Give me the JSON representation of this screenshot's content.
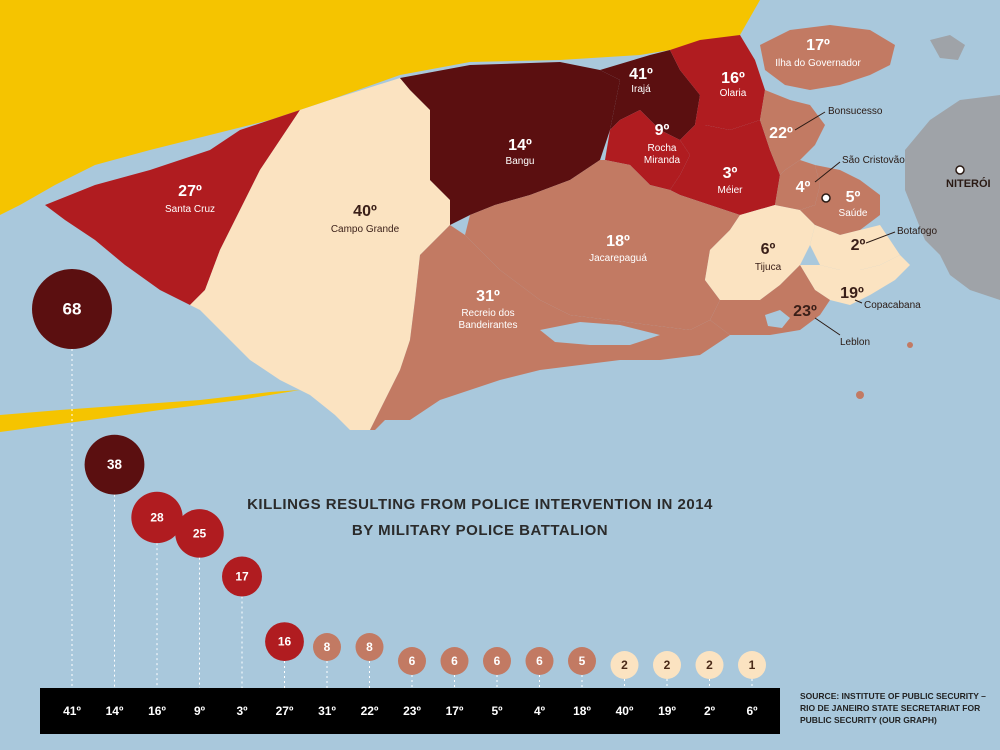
{
  "title": {
    "line1": "KILLINGS RESULTING FROM POLICE INTERVENTION IN 2014",
    "line2": "BY MILITARY POLICE BATTALION"
  },
  "source": "SOURCE: INSTITUTE OF PUBLIC SECURITY – RIO DE JANEIRO STATE SECRETARIAT FOR PUBLIC SECURITY (OUR GRAPH)",
  "colors": {
    "sea": "#a9c8dc",
    "land_outside": "#f5c400",
    "very_high": "#5b0f10",
    "high": "#b01c20",
    "medium": "#c27a63",
    "low": "#fbe3c1"
  },
  "regions": [
    {
      "id": "27",
      "num": "27º",
      "name": "Santa Cruz",
      "level": "high"
    },
    {
      "id": "40",
      "num": "40º",
      "name": "Campo Grande",
      "level": "low"
    },
    {
      "id": "14",
      "num": "14º",
      "name": "Bangu",
      "level": "very_high"
    },
    {
      "id": "41",
      "num": "41º",
      "name": "Irajá",
      "level": "very_high"
    },
    {
      "id": "16",
      "num": "16º",
      "name": "Olaria",
      "level": "high"
    },
    {
      "id": "9",
      "num": "9º",
      "name": "Rocha Miranda",
      "level": "high"
    },
    {
      "id": "3",
      "num": "3º",
      "name": "Méier",
      "level": "high"
    },
    {
      "id": "18",
      "num": "18º",
      "name": "Jacarepaguá",
      "level": "medium"
    },
    {
      "id": "31",
      "num": "31º",
      "name": "Recreio dos Bandeirantes",
      "level": "medium"
    },
    {
      "id": "6",
      "num": "6º",
      "name": "Tijuca",
      "level": "low"
    },
    {
      "id": "17",
      "num": "17º",
      "name": "Ilha do Governador",
      "level": "medium"
    },
    {
      "id": "22",
      "num": "22º",
      "name": "Bonsucesso",
      "level": "medium"
    },
    {
      "id": "4",
      "num": "4º",
      "name": "São Cristovão",
      "level": "medium"
    },
    {
      "id": "5",
      "num": "5º",
      "name": "Saúde",
      "level": "medium"
    },
    {
      "id": "2",
      "num": "2º",
      "name": "Botafogo",
      "level": "low"
    },
    {
      "id": "19",
      "num": "19º",
      "name": "Copacabana",
      "level": "low"
    },
    {
      "id": "23",
      "num": "23º",
      "name": "Leblon",
      "level": "medium"
    }
  ],
  "place_labels": {
    "niteroi": "NITERÓI"
  },
  "chart_data": {
    "type": "bubble",
    "title": "KILLINGS RESULTING FROM POLICE INTERVENTION IN 2014 BY MILITARY POLICE BATTALION",
    "categories": [
      "41º",
      "14º",
      "16º",
      "9º",
      "3º",
      "27º",
      "31º",
      "22º",
      "23º",
      "17º",
      "5º",
      "4º",
      "18º",
      "40º",
      "19º",
      "2º",
      "6º"
    ],
    "values": [
      68,
      38,
      28,
      25,
      17,
      16,
      8,
      8,
      6,
      6,
      6,
      6,
      5,
      2,
      2,
      2,
      1
    ],
    "levels": [
      "very_high",
      "very_high",
      "high",
      "high",
      "high",
      "high",
      "medium",
      "medium",
      "medium",
      "medium",
      "medium",
      "medium",
      "medium",
      "low",
      "low",
      "low",
      "low"
    ]
  }
}
